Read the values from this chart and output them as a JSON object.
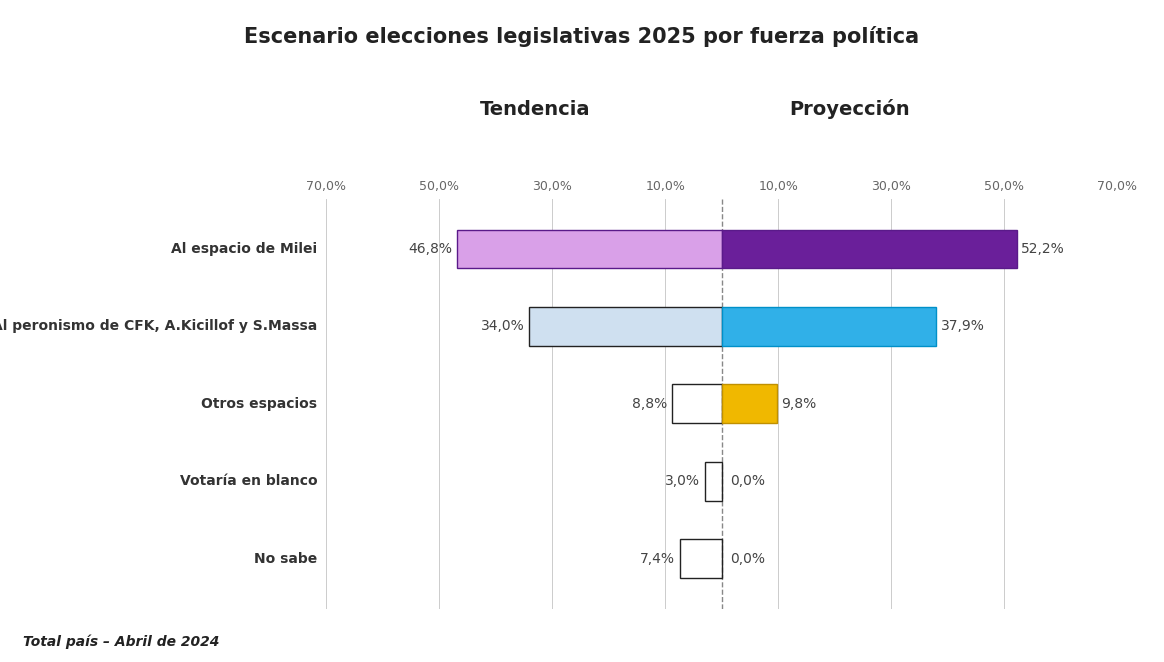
{
  "title": "Escenario elecciones legislativas 2025 por fuerza política",
  "subtitle_left": "Tendencia",
  "subtitle_right": "Proyección",
  "footer": "Total país – Abril de 2024",
  "categories": [
    "Al espacio de Milei",
    "Al peronismo de CFK, A.Kicillof y S.Massa",
    "Otros espacios",
    "Votaría en blanco",
    "No sabe"
  ],
  "tendencia_values": [
    46.8,
    34.0,
    8.8,
    3.0,
    7.4
  ],
  "proyeccion_values": [
    52.2,
    37.9,
    9.8,
    0.0,
    0.0
  ],
  "tendencia_colors": [
    "#d9a0e8",
    "#cfe0f0",
    "none",
    "none",
    "none"
  ],
  "tendencia_edge_colors": [
    "#5a1a8a",
    "#222222",
    "#222222",
    "#222222",
    "#222222"
  ],
  "proyeccion_colors": [
    "#6a1f9a",
    "#30b0e8",
    "#f0b800",
    "#808080",
    "#f08080"
  ],
  "proyeccion_edge_colors": [
    "#5a1a8a",
    "#0090c8",
    "#c09000",
    "#606060",
    "#d06060"
  ],
  "xlim": 70.0,
  "background_color": "#ffffff",
  "bar_height": 0.5,
  "tick_positions": [
    -70,
    -50,
    -30,
    -10,
    10,
    30,
    50,
    70
  ],
  "tick_labels": [
    "70,0%",
    "50,0%",
    "30,0%",
    "10,0%",
    "10,0%",
    "30,0%",
    "50,0%",
    "70,0%"
  ]
}
